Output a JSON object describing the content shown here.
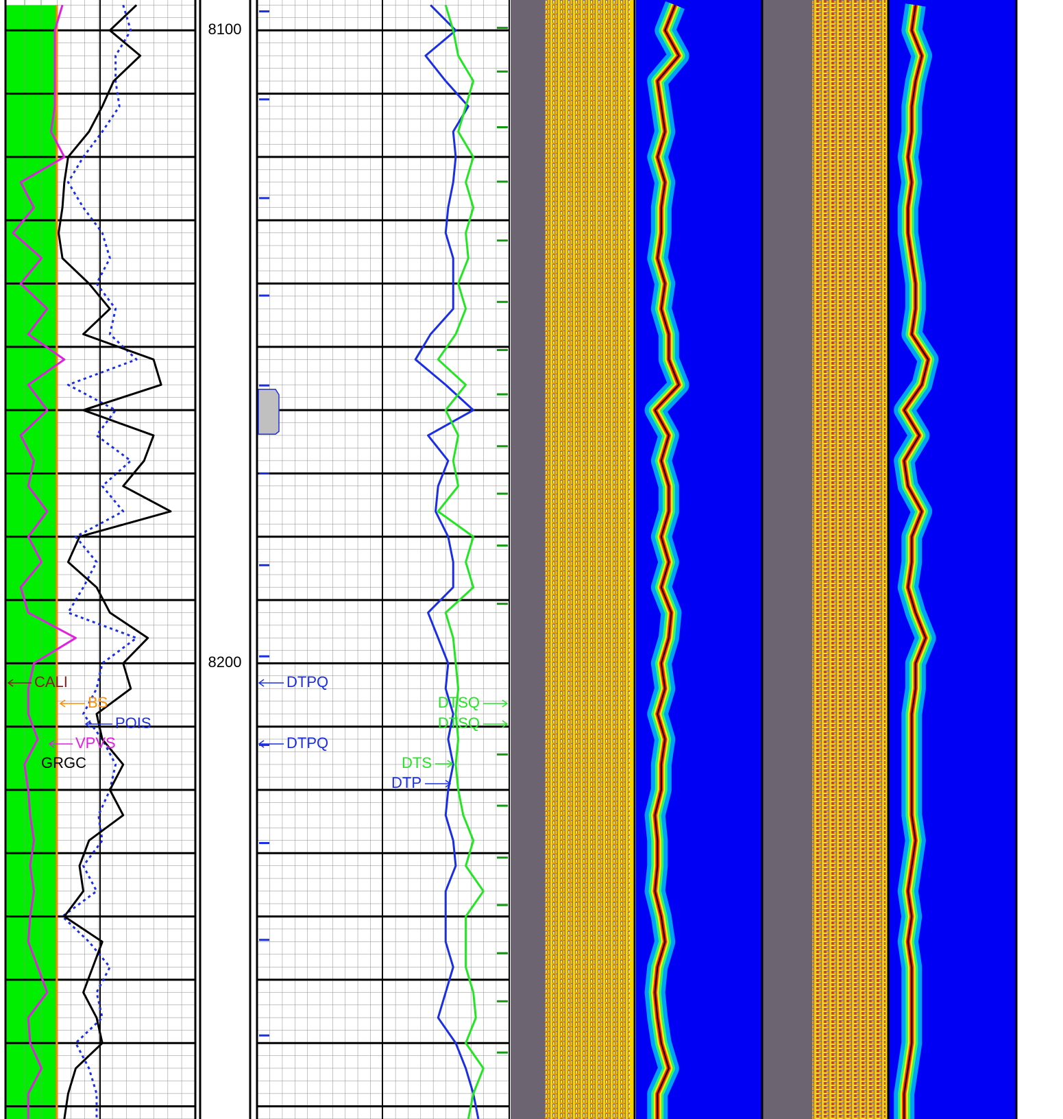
{
  "chart_data": {
    "type": "well_log",
    "ylim": [
      8095.2,
      8272
    ],
    "yticks": [
      8100,
      8200
    ],
    "grid": [
      8100,
      8110,
      8120,
      8130,
      8140,
      8150,
      8160,
      8170,
      8180,
      8190,
      8200,
      8210,
      8220,
      8230,
      8240,
      8250,
      8260,
      8270
    ],
    "depth": [
      8096,
      8100,
      8104,
      8108,
      8112,
      8116,
      8120,
      8124,
      8128,
      8132,
      8136,
      8140,
      8144,
      8148,
      8152,
      8156,
      8160,
      8164,
      8168,
      8172,
      8176,
      8180,
      8184,
      8188,
      8192,
      8196,
      8200,
      8204,
      8208,
      8212,
      8216,
      8220,
      8224,
      8228,
      8232,
      8236,
      8240,
      8244,
      8248,
      8252,
      8256,
      8260,
      8264,
      8268,
      8272
    ],
    "tracks": [
      {
        "xlim": [
          0,
          100
        ],
        "fill": "#00ee00",
        "fill_series": 1,
        "series": [
          {
            "name": "CALI",
            "color": "#8b1a1a",
            "values": [
              27,
              27,
              27,
              27,
              27,
              27,
              27,
              27,
              27,
              27,
              27,
              27,
              27,
              27,
              27,
              27,
              27,
              27,
              27,
              27,
              27,
              27,
              27,
              27,
              27,
              27,
              27,
              27,
              27,
              27,
              27,
              27,
              27,
              27,
              27,
              27,
              27,
              27,
              27,
              27,
              27,
              27,
              27,
              27,
              27
            ]
          },
          {
            "name": "BS",
            "color": "#ff8c00",
            "values": [
              27,
              27,
              27,
              27,
              27,
              27,
              27,
              27,
              27,
              27,
              27,
              27,
              27,
              27,
              27,
              27,
              27,
              27,
              27,
              27,
              27,
              27,
              27,
              27,
              27,
              27,
              27,
              27,
              27,
              27,
              27,
              27,
              27,
              27,
              27,
              27,
              27,
              27,
              27,
              27,
              27,
              27,
              27,
              27,
              27
            ]
          },
          {
            "name": "POIS",
            "color": "#1a2ee6",
            "dash": true,
            "values": [
              62,
              66,
              58,
              58,
              60,
              51,
              41,
              33,
              41,
              51,
              55,
              48,
              58,
              55,
              69,
              33,
              58,
              48,
              66,
              51,
              62,
              37,
              48,
              41,
              33,
              69,
              51,
              48,
              41,
              51,
              58,
              55,
              49,
              51,
              41,
              48,
              30,
              44,
              55,
              48,
              51,
              37,
              44,
              48,
              48
            ]
          },
          {
            "name": "VPVS",
            "color": "#e020e0",
            "values": [
              30,
              26,
              26,
              26,
              26,
              24,
              31,
              8,
              15,
              4,
              19,
              8,
              22,
              12,
              31,
              12,
              22,
              8,
              15,
              12,
              22,
              12,
              19,
              8,
              12,
              37,
              15,
              12,
              12,
              17,
              10,
              12,
              13,
              15,
              13,
              15,
              13,
              12,
              17,
              22,
              12,
              13,
              19,
              12,
              12
            ]
          },
          {
            "name": "GRGC",
            "color": "#000000",
            "values": [
              69,
              55,
              71,
              57,
              51,
              44,
              33,
              31,
              30,
              28,
              30,
              44,
              55,
              41,
              78,
              82,
              41,
              78,
              73,
              62,
              87,
              39,
              33,
              48,
              55,
              75,
              62,
              66,
              48,
              51,
              62,
              55,
              62,
              44,
              39,
              41,
              31,
              51,
              46,
              41,
              48,
              51,
              37,
              33,
              31
            ]
          }
        ],
        "labels": [
          {
            "text": "CALI",
            "color": "#8b1a1a"
          },
          {
            "text": "BS",
            "color": "#ff8c00"
          },
          {
            "text": "POIS",
            "color": "#1a2ee6"
          },
          {
            "text": "VPVS",
            "color": "#e020e0"
          },
          {
            "text": "GRGC",
            "color": "#000000"
          }
        ]
      },
      {
        "xlim": [
          0,
          100
        ],
        "series": [
          {
            "name": "DTP",
            "color": "#1a2ee6",
            "values": [
              69,
              79,
              67,
              75,
              84,
              78,
              79,
              78,
              76,
              75,
              78,
              78,
              78,
              69,
              63,
              75,
              86,
              68,
              76,
              72,
              71,
              76,
              78,
              78,
              68,
              72,
              76,
              75,
              78,
              76,
              78,
              76,
              75,
              78,
              79,
              75,
              75,
              75,
              78,
              75,
              72,
              79,
              83,
              86,
              88
            ]
          },
          {
            "name": "DTS",
            "color": "#22e622",
            "values": [
              75,
              78,
              80,
              86,
              83,
              80,
              86,
              83,
              86,
              83,
              84,
              80,
              83,
              79,
              72,
              83,
              75,
              80,
              78,
              80,
              72,
              86,
              83,
              86,
              75,
              78,
              79,
              80,
              79,
              80,
              79,
              80,
              82,
              86,
              83,
              90,
              83,
              83,
              83,
              86,
              87,
              83,
              90,
              86,
              84
            ]
          }
        ],
        "blue_flags": [
          8097.0,
          8110.9,
          8126.5,
          8141.9,
          8156.1,
          8170.0,
          8184.5,
          8198.9,
          8212.9,
          8228.4,
          8243.7,
          8258.8
        ],
        "green_flags": [
          8099.6,
          8106.5,
          8115.3,
          8123.9,
          8133.2,
          8142.9,
          8150.5,
          8157.5,
          8165.7,
          8173.2,
          8181.4,
          8190.6,
          8214.4,
          8222.5,
          8230.7,
          8238.2,
          8245.8,
          8253.4,
          8261.5
        ],
        "block": [
          8156.7,
          8163.8
        ],
        "labels": [
          {
            "text": "DTPQ",
            "color": "#1a2ee6"
          },
          {
            "text": "DTSQ",
            "color": "#22e622"
          },
          {
            "text": "DTSQ",
            "color": "#22e622"
          },
          {
            "text": "DTPQ",
            "color": "#1a2ee6"
          },
          {
            "text": "DTS",
            "color": "#22e622"
          },
          {
            "text": "DTP",
            "color": "#1a2ee6"
          }
        ]
      },
      {
        "xlim": [
          0,
          100
        ],
        "halo": true,
        "series": [
          {
            "color": "#000000",
            "values": [
              31,
              23,
              34,
              17,
              20,
              23,
              17,
              23,
              20,
              20,
              17,
              23,
              20,
              26,
              26,
              34,
              15,
              26,
              20,
              26,
              26,
              20,
              26,
              20,
              28,
              26,
              20,
              23,
              17,
              23,
              20,
              20,
              15,
              17,
              17,
              15,
              20,
              23,
              17,
              15,
              17,
              20,
              26,
              17,
              17
            ]
          }
        ]
      },
      {
        "xlim": [
          0,
          100
        ],
        "halo": true,
        "series": [
          {
            "color": "#000000",
            "values": [
              21,
              18,
              26,
              21,
              18,
              18,
              15,
              18,
              15,
              15,
              18,
              21,
              21,
              18,
              31,
              26,
              12,
              24,
              12,
              15,
              26,
              18,
              18,
              15,
              21,
              29,
              21,
              21,
              18,
              18,
              18,
              18,
              18,
              21,
              18,
              15,
              18,
              15,
              18,
              18,
              18,
              18,
              15,
              12,
              12
            ]
          }
        ]
      }
    ]
  }
}
